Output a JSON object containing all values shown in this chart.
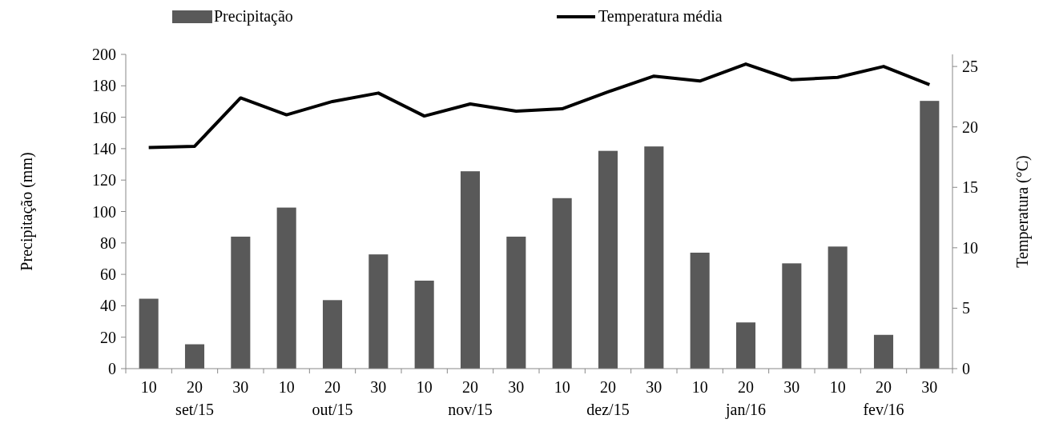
{
  "chart_data": {
    "type": "bar",
    "categories": [
      "10",
      "20",
      "30",
      "10",
      "20",
      "30",
      "10",
      "20",
      "30",
      "10",
      "20",
      "30",
      "10",
      "20",
      "30",
      "10",
      "20",
      "30"
    ],
    "annotations": [
      "set/15",
      "out/15",
      "nov/15",
      "dez/15",
      "jan/16",
      "fev/16"
    ],
    "series": [
      {
        "name": "Precipitação",
        "color": "#595959",
        "values": [
          44.5,
          15.5,
          84,
          102.5,
          43.6,
          72.7,
          56,
          125.6,
          84,
          108.5,
          138.6,
          141.4,
          73.8,
          29.4,
          67,
          77.7,
          21.5,
          170.4
        ]
      },
      {
        "name": "Temperatura média",
        "type": "line",
        "axis": "y2",
        "color": "#000000",
        "values": [
          18.3,
          18.4,
          22.4,
          21.0,
          22.1,
          22.8,
          20.9,
          21.9,
          21.3,
          21.5,
          22.9,
          24.2,
          23.8,
          25.2,
          23.9,
          24.1,
          25.0,
          23.5
        ]
      }
    ],
    "ylabel": "Precipitação (mm)",
    "y2label": "Temperatura (°C)",
    "ylim": [
      0,
      200
    ],
    "yticks": [
      0,
      20,
      40,
      60,
      80,
      100,
      120,
      140,
      160,
      180,
      200
    ],
    "y2lim": [
      0,
      26
    ],
    "y2ticks": [
      0,
      5,
      10,
      15,
      20,
      25
    ],
    "legend": "top",
    "grid": false,
    "marker": "none",
    "line_style": "solid"
  }
}
